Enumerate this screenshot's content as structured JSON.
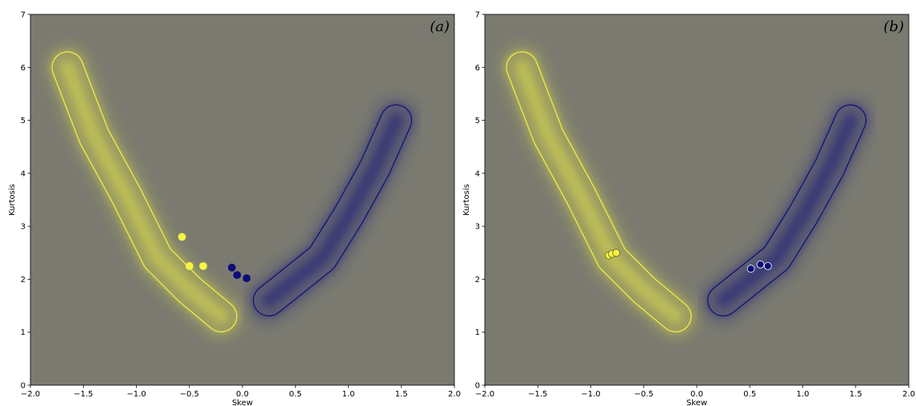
{
  "chart_data": [
    {
      "type": "scatter",
      "panel_label": "(a)",
      "xlabel": "Skew",
      "ylabel": "Kurtosis",
      "xlim": [
        -2.0,
        2.0
      ],
      "ylim": [
        0,
        7
      ],
      "xticks": [
        -2.0,
        -1.5,
        -1.0,
        -0.5,
        0.0,
        0.5,
        1.0,
        1.5,
        2.0
      ],
      "yticks": [
        0,
        1,
        2,
        3,
        4,
        5,
        6,
        7
      ],
      "xtick_labels": [
        "−2.0",
        "−1.5",
        "−1.0",
        "−0.5",
        "0.0",
        "0.5",
        "1.0",
        "1.5",
        "2.0"
      ],
      "ytick_labels": [
        "0",
        "1",
        "2",
        "3",
        "4",
        "5",
        "6",
        "7"
      ],
      "background_color": "#7a7a70",
      "density_regions": [
        {
          "color": "#f5f542",
          "ridge": [
            [
              -1.65,
              6.0
            ],
            [
              -1.4,
              4.7
            ],
            [
              -1.1,
              3.6
            ],
            [
              -0.8,
              2.4
            ],
            [
              -0.5,
              1.8
            ],
            [
              -0.2,
              1.3
            ]
          ]
        },
        {
          "color": "#0d0d7a",
          "ridge": [
            [
              0.25,
              1.6
            ],
            [
              0.5,
              2.0
            ],
            [
              0.75,
              2.4
            ],
            [
              1.0,
              3.2
            ],
            [
              1.25,
              4.1
            ],
            [
              1.45,
              5.0
            ]
          ]
        }
      ],
      "series": [
        {
          "color": "#f5f542",
          "edge": "#f5f542",
          "points": [
            [
              -0.57,
              2.8
            ],
            [
              -0.5,
              2.25
            ],
            [
              -0.37,
              2.25
            ]
          ]
        },
        {
          "color": "#0d0d7a",
          "edge": "#0d0d7a",
          "points": [
            [
              -0.1,
              2.22
            ],
            [
              -0.05,
              2.08
            ],
            [
              0.04,
              2.02
            ]
          ]
        }
      ]
    },
    {
      "type": "scatter",
      "panel_label": "(b)",
      "xlabel": "Skew",
      "ylabel": "Kurtosis",
      "xlim": [
        -2.0,
        2.0
      ],
      "ylim": [
        0,
        7
      ],
      "xticks": [
        -2.0,
        -1.5,
        -1.0,
        -0.5,
        0.0,
        0.5,
        1.0,
        1.5,
        2.0
      ],
      "yticks": [
        0,
        1,
        2,
        3,
        4,
        5,
        6,
        7
      ],
      "xtick_labels": [
        "−2.0",
        "−1.5",
        "−1.0",
        "−0.5",
        "0.0",
        "0.5",
        "1.0",
        "1.5",
        "2.0"
      ],
      "ytick_labels": [
        "0",
        "1",
        "2",
        "3",
        "4",
        "5",
        "6",
        "7"
      ],
      "background_color": "#7a7a70",
      "density_regions": [
        {
          "color": "#f5f542",
          "ridge": [
            [
              -1.65,
              6.0
            ],
            [
              -1.4,
              4.7
            ],
            [
              -1.1,
              3.6
            ],
            [
              -0.8,
              2.4
            ],
            [
              -0.5,
              1.8
            ],
            [
              -0.2,
              1.3
            ]
          ]
        },
        {
          "color": "#0d0d7a",
          "ridge": [
            [
              0.25,
              1.6
            ],
            [
              0.5,
              2.0
            ],
            [
              0.75,
              2.4
            ],
            [
              1.0,
              3.2
            ],
            [
              1.25,
              4.1
            ],
            [
              1.45,
              5.0
            ]
          ]
        }
      ],
      "series": [
        {
          "color": "#f5f542",
          "edge": "#5a5a30",
          "points": [
            [
              -0.83,
              2.45
            ],
            [
              -0.8,
              2.48
            ],
            [
              -0.76,
              2.5
            ]
          ]
        },
        {
          "color": "#0d0d7a",
          "edge": "#ffffff",
          "points": [
            [
              0.51,
              2.2
            ],
            [
              0.6,
              2.28
            ],
            [
              0.67,
              2.25
            ]
          ]
        }
      ]
    }
  ]
}
